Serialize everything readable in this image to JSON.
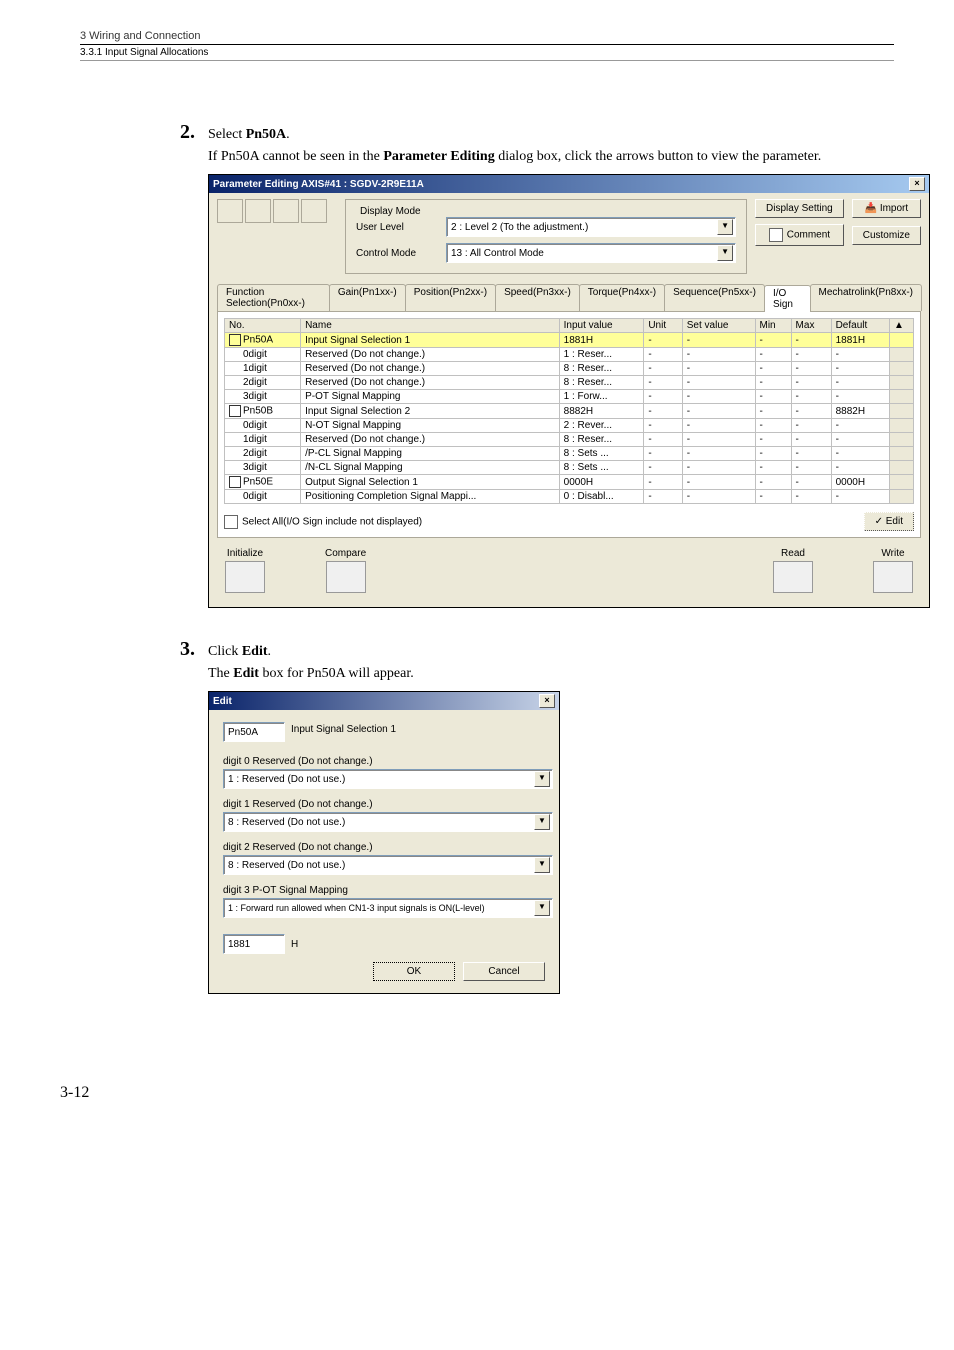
{
  "header": {
    "chapter": "3  Wiring and Connection",
    "section": "3.3.1  Input Signal Allocations"
  },
  "step2": {
    "num": "2.",
    "title": "Select Pn50A.",
    "title_bold": "Pn50A",
    "body_prefix": "If Pn50A cannot be seen in the ",
    "body_bold": "Parameter Editing",
    "body_suffix": " dialog box, click the arrows button to view the parameter."
  },
  "dialog1": {
    "title": "Parameter Editing AXIS#41 : SGDV-2R9E11A",
    "display_mode_label": "Display Mode",
    "user_level_label": "User Level",
    "user_level_value": "2 : Level 2 (To the adjustment.)",
    "control_mode_label": "Control Mode",
    "control_mode_value": "13 : All Control Mode",
    "btn_display": "Display Setting",
    "btn_import": "Import",
    "btn_comment": "Comment",
    "btn_customize": "Customize",
    "tabs": [
      "Function Selection(Pn0xx-)",
      "Gain(Pn1xx-)",
      "Position(Pn2xx-)",
      "Speed(Pn3xx-)",
      "Torque(Pn4xx-)",
      "Sequence(Pn5xx-)",
      "I/O Sign",
      "Mechatrolink(Pn8xx-)"
    ],
    "columns": [
      "No.",
      "Name",
      "Input value",
      "Unit",
      "Set value",
      "Min",
      "Max",
      "Default"
    ],
    "rows": [
      {
        "no": "Pn50A",
        "name": "Input Signal Selection 1",
        "iv": "1881H",
        "unit": "-",
        "sv": "-",
        "min": "-",
        "max": "-",
        "def": "1881H",
        "check": true,
        "hl": true
      },
      {
        "no": "0digit",
        "name": "Reserved (Do not change.)",
        "iv": "1 : Reser...",
        "unit": "-",
        "sv": "-",
        "min": "-",
        "max": "-",
        "def": "-"
      },
      {
        "no": "1digit",
        "name": "Reserved (Do not change.)",
        "iv": "8 : Reser...",
        "unit": "-",
        "sv": "-",
        "min": "-",
        "max": "-",
        "def": "-"
      },
      {
        "no": "2digit",
        "name": "Reserved (Do not change.)",
        "iv": "8 : Reser...",
        "unit": "-",
        "sv": "-",
        "min": "-",
        "max": "-",
        "def": "-"
      },
      {
        "no": "3digit",
        "name": "P-OT Signal Mapping",
        "iv": "1 : Forw...",
        "unit": "-",
        "sv": "-",
        "min": "-",
        "max": "-",
        "def": "-"
      },
      {
        "no": "Pn50B",
        "name": "Input Signal Selection 2",
        "iv": "8882H",
        "unit": "-",
        "sv": "-",
        "min": "-",
        "max": "-",
        "def": "8882H",
        "check": true
      },
      {
        "no": "0digit",
        "name": "N-OT Signal Mapping",
        "iv": "2 : Rever...",
        "unit": "-",
        "sv": "-",
        "min": "-",
        "max": "-",
        "def": "-"
      },
      {
        "no": "1digit",
        "name": "Reserved (Do not change.)",
        "iv": "8 : Reser...",
        "unit": "-",
        "sv": "-",
        "min": "-",
        "max": "-",
        "def": "-"
      },
      {
        "no": "2digit",
        "name": "/P-CL Signal Mapping",
        "iv": "8 : Sets ...",
        "unit": "-",
        "sv": "-",
        "min": "-",
        "max": "-",
        "def": "-"
      },
      {
        "no": "3digit",
        "name": "/N-CL Signal Mapping",
        "iv": "8 : Sets ...",
        "unit": "-",
        "sv": "-",
        "min": "-",
        "max": "-",
        "def": "-"
      },
      {
        "no": "Pn50E",
        "name": "Output Signal Selection 1",
        "iv": "0000H",
        "unit": "-",
        "sv": "-",
        "min": "-",
        "max": "-",
        "def": "0000H",
        "check": true
      },
      {
        "no": "0digit",
        "name": "Positioning Completion Signal Mappi...",
        "iv": "0 : Disabl...",
        "unit": "-",
        "sv": "-",
        "min": "-",
        "max": "-",
        "def": "-"
      }
    ],
    "select_all": "Select All(I/O Sign include not displayed)",
    "edit_btn": "✓ Edit",
    "initialize": "Initialize",
    "compare": "Compare",
    "read": "Read",
    "write": "Write"
  },
  "step3": {
    "num": "3.",
    "title_prefix": "Click ",
    "title_bold": "Edit",
    "body_prefix": "The ",
    "body_bold": "Edit",
    "body_suffix": " box for Pn50A will appear."
  },
  "dialog2": {
    "title": "Edit",
    "param_no": "Pn50A",
    "param_name": "Input Signal Selection 1",
    "d0_label": "digit 0  Reserved (Do not change.)",
    "d0_value": "1 : Reserved (Do not use.)",
    "d1_label": "digit 1  Reserved (Do not change.)",
    "d1_value": "8 : Reserved (Do not use.)",
    "d2_label": "digit 2  Reserved (Do not change.)",
    "d2_value": "8 : Reserved (Do not use.)",
    "d3_label": "digit 3  P-OT Signal Mapping",
    "d3_value": "1 : Forward run allowed when CN1-3 input signals is ON(L-level)",
    "value_num": "1881",
    "value_h": "H",
    "ok": "OK",
    "cancel": "Cancel"
  },
  "page_num": "3-12"
}
